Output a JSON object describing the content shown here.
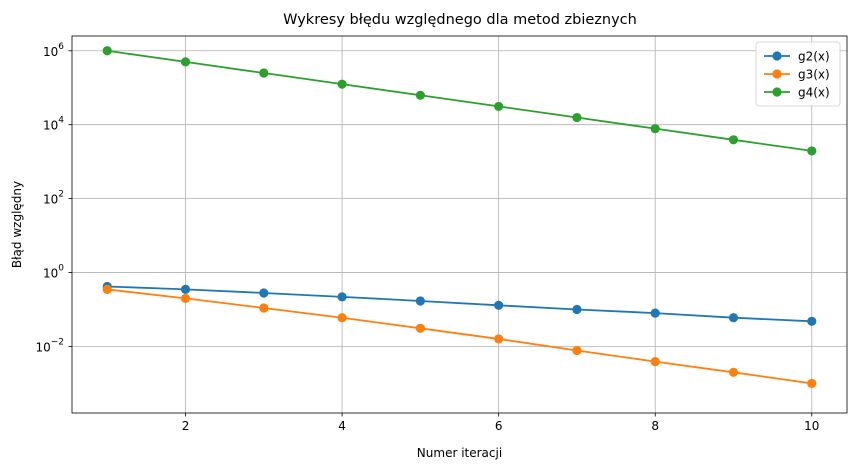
{
  "chart_data": {
    "type": "line",
    "title": "Wykresy błędu względnego dla metod zbieznych",
    "xlabel": "Numer iteracji",
    "ylabel": "Błąd względny",
    "yscale": "log",
    "xlim": [
      0.55,
      10.45
    ],
    "ylim_exponent": [
      -3.8,
      6.4
    ],
    "grid": true,
    "legend_position": "top-right",
    "x": [
      1,
      2,
      3,
      4,
      5,
      6,
      7,
      8,
      9,
      10
    ],
    "x_ticks": [
      2,
      4,
      6,
      8,
      10
    ],
    "y_tick_exponents": [
      -2,
      0,
      2,
      4,
      6
    ],
    "series": [
      {
        "name": "g2(x)",
        "color": "#1f77b4",
        "values": [
          0.42,
          0.35,
          0.28,
          0.22,
          0.17,
          0.13,
          0.1,
          0.08,
          0.06,
          0.048
        ]
      },
      {
        "name": "g3(x)",
        "color": "#ff7f0e",
        "values": [
          0.35,
          0.2,
          0.11,
          0.06,
          0.031,
          0.016,
          0.0078,
          0.0039,
          0.002,
          0.001
        ]
      },
      {
        "name": "g4(x)",
        "color": "#2ca02c",
        "values": [
          1000000,
          500000,
          250000,
          125000,
          62500,
          31250,
          15625,
          7812,
          3906,
          1953
        ]
      }
    ]
  }
}
